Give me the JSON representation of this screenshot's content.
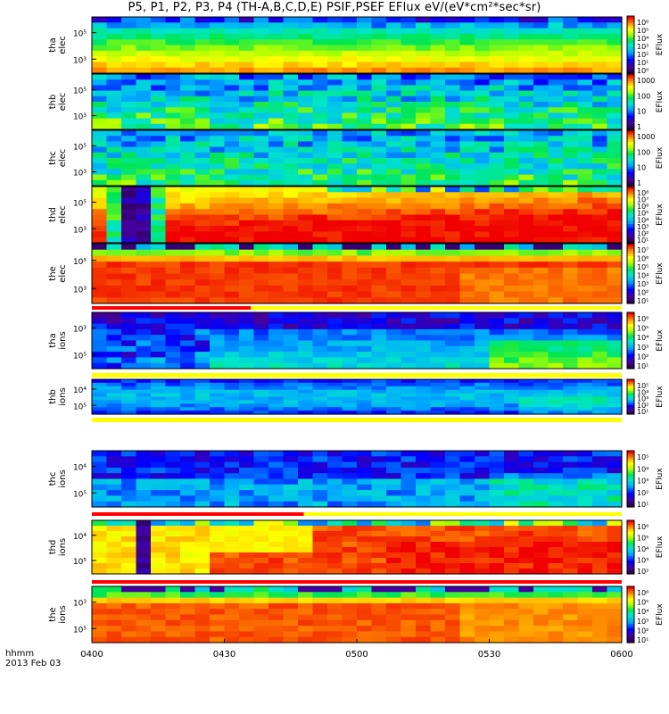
{
  "title": "P5, P1, P2, P3, P4 (TH-A,B,C,D,E) PSIF,PSEF EFlux eV/(eV*cm²*sec*sr)",
  "chart_data": {
    "type": "heatmap",
    "x_ticks": [
      "0400",
      "0430",
      "0500",
      "0530",
      "0600"
    ],
    "x_range": [
      "04:00",
      "06:00"
    ],
    "x_label": "hhmm",
    "date_label": "2013 Feb 03",
    "colorbar_label": "EFlux",
    "panels": [
      {
        "id": "tha-elec",
        "ylabel": [
          "tha",
          "elec"
        ],
        "yticks": [
          "10⁵",
          "10³"
        ],
        "cbar_ticks": [
          "10⁶",
          "10⁵",
          "10⁴",
          "10³",
          "10²",
          "10¹",
          "10⁰"
        ]
      },
      {
        "id": "thb-elec",
        "ylabel": [
          "thb",
          "elec"
        ],
        "yticks": [
          "10⁵",
          "10³"
        ],
        "cbar_ticks": [
          "1000",
          "100",
          "10",
          "1"
        ]
      },
      {
        "id": "thc-elec",
        "ylabel": [
          "thc",
          "elec"
        ],
        "yticks": [
          "10⁵",
          "10³"
        ],
        "cbar_ticks": [
          "1000",
          "100",
          "10",
          "1"
        ]
      },
      {
        "id": "thd-elec",
        "ylabel": [
          "thd",
          "elec"
        ],
        "yticks": [
          "10⁵",
          "10³"
        ],
        "cbar_ticks": [
          "10⁸",
          "10⁷",
          "10⁶",
          "10⁵",
          "10⁴",
          "10³",
          "10²",
          "10¹"
        ]
      },
      {
        "id": "the-elec",
        "ylabel": [
          "the",
          "elec"
        ],
        "yticks": [
          "10⁵",
          "10³"
        ],
        "cbar_ticks": [
          "10⁷",
          "10⁶",
          "10⁵",
          "10⁴",
          "10³",
          "10²",
          "10¹"
        ]
      },
      {
        "id": "tha-ions",
        "ylabel": [
          "tha",
          "ions"
        ],
        "yticks": [
          "10³",
          "10⁵"
        ],
        "cbar_ticks": [
          "10⁶",
          "10⁵",
          "10⁴",
          "10³",
          "10²",
          "10¹"
        ]
      },
      {
        "id": "thb-ions",
        "ylabel": [
          "thb",
          "ions"
        ],
        "yticks": [
          "10⁴",
          "10⁵"
        ],
        "cbar_ticks": [
          "10⁵",
          "10⁴",
          "10³",
          "10²",
          "10¹"
        ]
      },
      {
        "id": "thc-ions",
        "ylabel": [
          "thc",
          "ions"
        ],
        "yticks": [
          "10⁴",
          "10⁵"
        ],
        "cbar_ticks": [
          "10⁵",
          "10⁴",
          "10³",
          "10²",
          "10¹"
        ]
      },
      {
        "id": "thd-ions",
        "ylabel": [
          "thd",
          "ions"
        ],
        "yticks": [
          "10⁴",
          "10⁵"
        ],
        "cbar_ticks": [
          "10⁶",
          "10⁵",
          "10⁴",
          "10³",
          "10²"
        ]
      },
      {
        "id": "the-ions",
        "ylabel": [
          "the",
          "ions"
        ],
        "yticks": [
          "10³",
          "10⁵"
        ],
        "cbar_ticks": [
          "10⁶",
          "10⁵",
          "10⁴",
          "10³",
          "10²",
          "10¹"
        ]
      }
    ]
  }
}
